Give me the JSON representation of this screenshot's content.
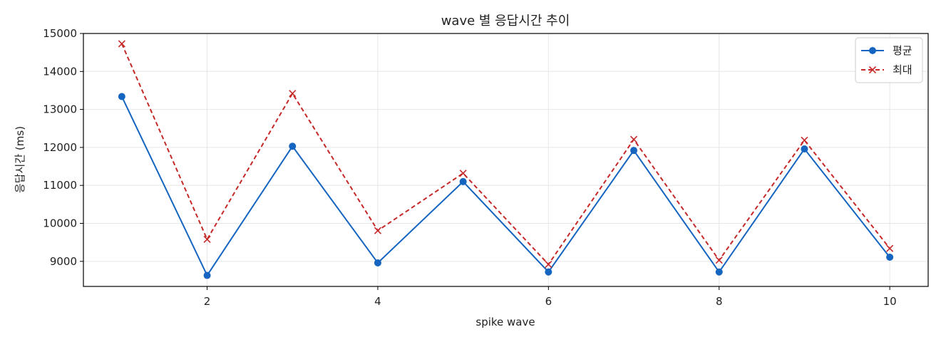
{
  "chart_data": {
    "type": "line",
    "title": "wave 별 응답시간 추이",
    "xlabel": "spike wave",
    "ylabel": "응답시간 (ms)",
    "x": [
      1,
      2,
      3,
      4,
      5,
      6,
      7,
      8,
      9,
      10
    ],
    "xlim": [
      0.55,
      10.45
    ],
    "ylim": [
      8340,
      15000
    ],
    "xticks": [
      2,
      4,
      6,
      8,
      10
    ],
    "yticks": [
      9000,
      10000,
      11000,
      12000,
      13000,
      14000,
      15000
    ],
    "grid": true,
    "legend_position": "top-right",
    "series": [
      {
        "name": "평균",
        "color": "#1565c0",
        "line_style": "solid",
        "marker": "circle",
        "values": [
          13340,
          8630,
          12030,
          8960,
          11100,
          8720,
          11920,
          8720,
          11960,
          9110
        ]
      },
      {
        "name": "최대",
        "color": "#c62828",
        "line_style": "dashed",
        "marker": "x",
        "values": [
          14730,
          9580,
          13420,
          9810,
          11320,
          8920,
          12210,
          9030,
          12190,
          9340
        ]
      }
    ]
  }
}
